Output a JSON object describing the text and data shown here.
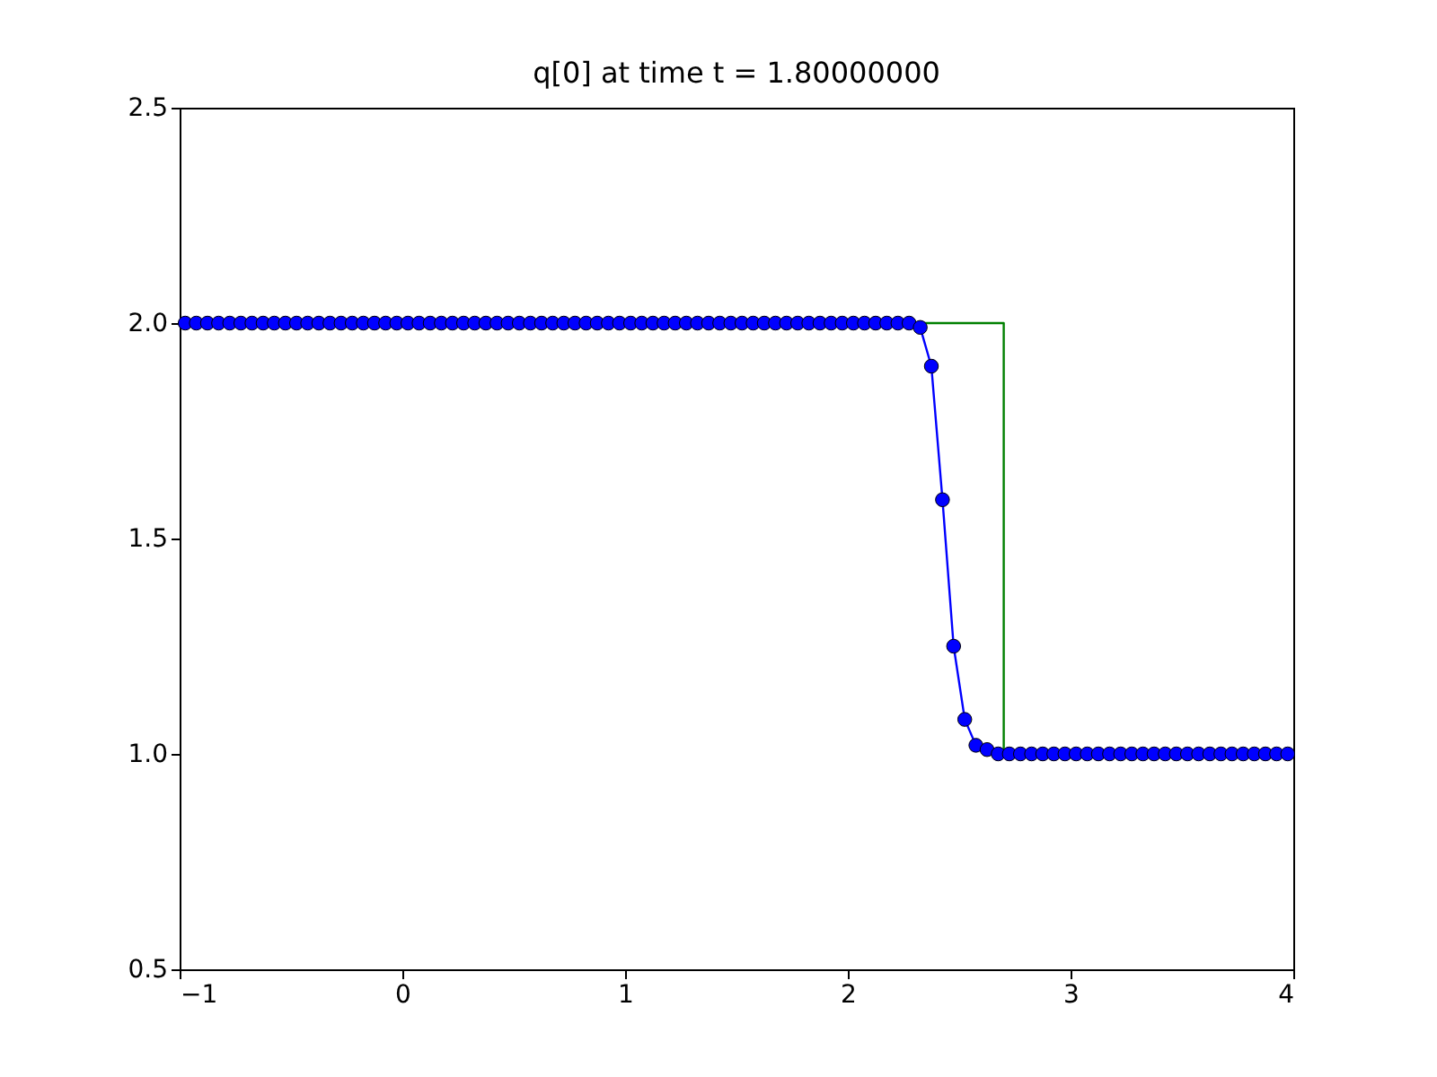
{
  "chart_data": {
    "type": "line",
    "title": "q[0] at time t =     1.80000000",
    "xlim": [
      -1,
      4
    ],
    "xticks": [
      -1,
      0,
      1,
      2,
      3,
      4
    ],
    "ylim": [
      0.5,
      2.5
    ],
    "yticks": [
      0.5,
      {
        "value": 1,
        "label": "1.0"
      },
      1.5,
      {
        "value": 2,
        "label": "2.0"
      },
      2.5
    ],
    "grid": false,
    "legend": false,
    "series": [
      {
        "color": "#008000",
        "marker": "none",
        "x": [
          -1,
          2.7,
          2.7,
          4
        ],
        "values": [
          2,
          2,
          1,
          1
        ]
      },
      {
        "color": "#0000ff",
        "marker": "circle",
        "x": [
          -0.975,
          -0.925,
          -0.875,
          -0.825,
          -0.775,
          -0.725,
          -0.675,
          -0.625,
          -0.575,
          -0.525,
          -0.475,
          -0.425,
          -0.375,
          -0.325,
          -0.275,
          -0.225,
          -0.175,
          -0.125,
          -0.075,
          -0.025,
          0.025,
          0.075,
          0.125,
          0.175,
          0.225,
          0.275,
          0.325,
          0.375,
          0.425,
          0.475,
          0.525,
          0.575,
          0.625,
          0.675,
          0.725,
          0.775,
          0.825,
          0.875,
          0.925,
          0.975,
          1.025,
          1.075,
          1.125,
          1.175,
          1.225,
          1.275,
          1.325,
          1.375,
          1.425,
          1.475,
          1.525,
          1.575,
          1.625,
          1.675,
          1.725,
          1.775,
          1.825,
          1.875,
          1.925,
          1.975,
          2.025,
          2.075,
          2.125,
          2.175,
          2.225,
          2.275,
          2.325,
          2.375,
          2.425,
          2.475,
          2.525,
          2.575,
          2.625,
          2.675,
          2.725,
          2.775,
          2.825,
          2.875,
          2.925,
          2.975,
          3.025,
          3.075,
          3.125,
          3.175,
          3.225,
          3.275,
          3.325,
          3.375,
          3.425,
          3.475,
          3.525,
          3.575,
          3.625,
          3.675,
          3.725,
          3.775,
          3.825,
          3.875,
          3.925,
          3.975
        ],
        "values": [
          2,
          2,
          2,
          2,
          2,
          2,
          2,
          2,
          2,
          2,
          2,
          2,
          2,
          2,
          2,
          2,
          2,
          2,
          2,
          2,
          2,
          2,
          2,
          2,
          2,
          2,
          2,
          2,
          2,
          2,
          2,
          2,
          2,
          2,
          2,
          2,
          2,
          2,
          2,
          2,
          2,
          2,
          2,
          2,
          2,
          2,
          2,
          2,
          2,
          2,
          2,
          2,
          2,
          2,
          2,
          2,
          2,
          2,
          2,
          2,
          2,
          2,
          2,
          2,
          2,
          2,
          1.99,
          1.9,
          1.59,
          1.25,
          1.08,
          1.02,
          1.01,
          1,
          1,
          1,
          1,
          1,
          1,
          1,
          1,
          1,
          1,
          1,
          1,
          1,
          1,
          1,
          1,
          1,
          1,
          1,
          1,
          1,
          1,
          1,
          1,
          1,
          1,
          1
        ]
      }
    ]
  }
}
